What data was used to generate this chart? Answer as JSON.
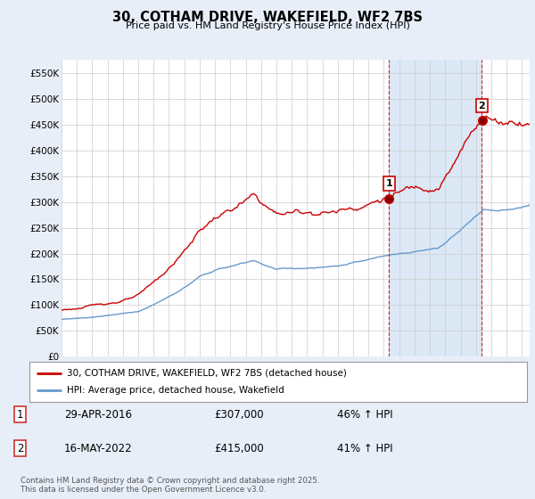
{
  "title": "30, COTHAM DRIVE, WAKEFIELD, WF2 7BS",
  "subtitle": "Price paid vs. HM Land Registry's House Price Index (HPI)",
  "background_color": "#e8eef8",
  "plot_bg_color": "#ffffff",
  "highlight_color": "#dce8f5",
  "ylim": [
    0,
    575000
  ],
  "yticks": [
    0,
    50000,
    100000,
    150000,
    200000,
    250000,
    300000,
    350000,
    400000,
    450000,
    500000,
    550000
  ],
  "ytick_labels": [
    "£0",
    "£50K",
    "£100K",
    "£150K",
    "£200K",
    "£250K",
    "£300K",
    "£350K",
    "£400K",
    "£450K",
    "£500K",
    "£550K"
  ],
  "red_color": "#cc0000",
  "blue_color": "#6699cc",
  "dashed_color": "#cc0000",
  "marker1_x": 2016.33,
  "marker1_y": 307000,
  "marker1_label": "1",
  "marker1_date": "29-APR-2016",
  "marker1_price": "£307,000",
  "marker1_hpi": "46% ↑ HPI",
  "marker2_x": 2022.38,
  "marker2_y": 415000,
  "marker2_label": "2",
  "marker2_date": "16-MAY-2022",
  "marker2_price": "£415,000",
  "marker2_hpi": "41% ↑ HPI",
  "legend_line1": "30, COTHAM DRIVE, WAKEFIELD, WF2 7BS (detached house)",
  "legend_line2": "HPI: Average price, detached house, Wakefield",
  "footer": "Contains HM Land Registry data © Crown copyright and database right 2025.\nThis data is licensed under the Open Government Licence v3.0.",
  "xmin": 1995,
  "xmax": 2025.5
}
